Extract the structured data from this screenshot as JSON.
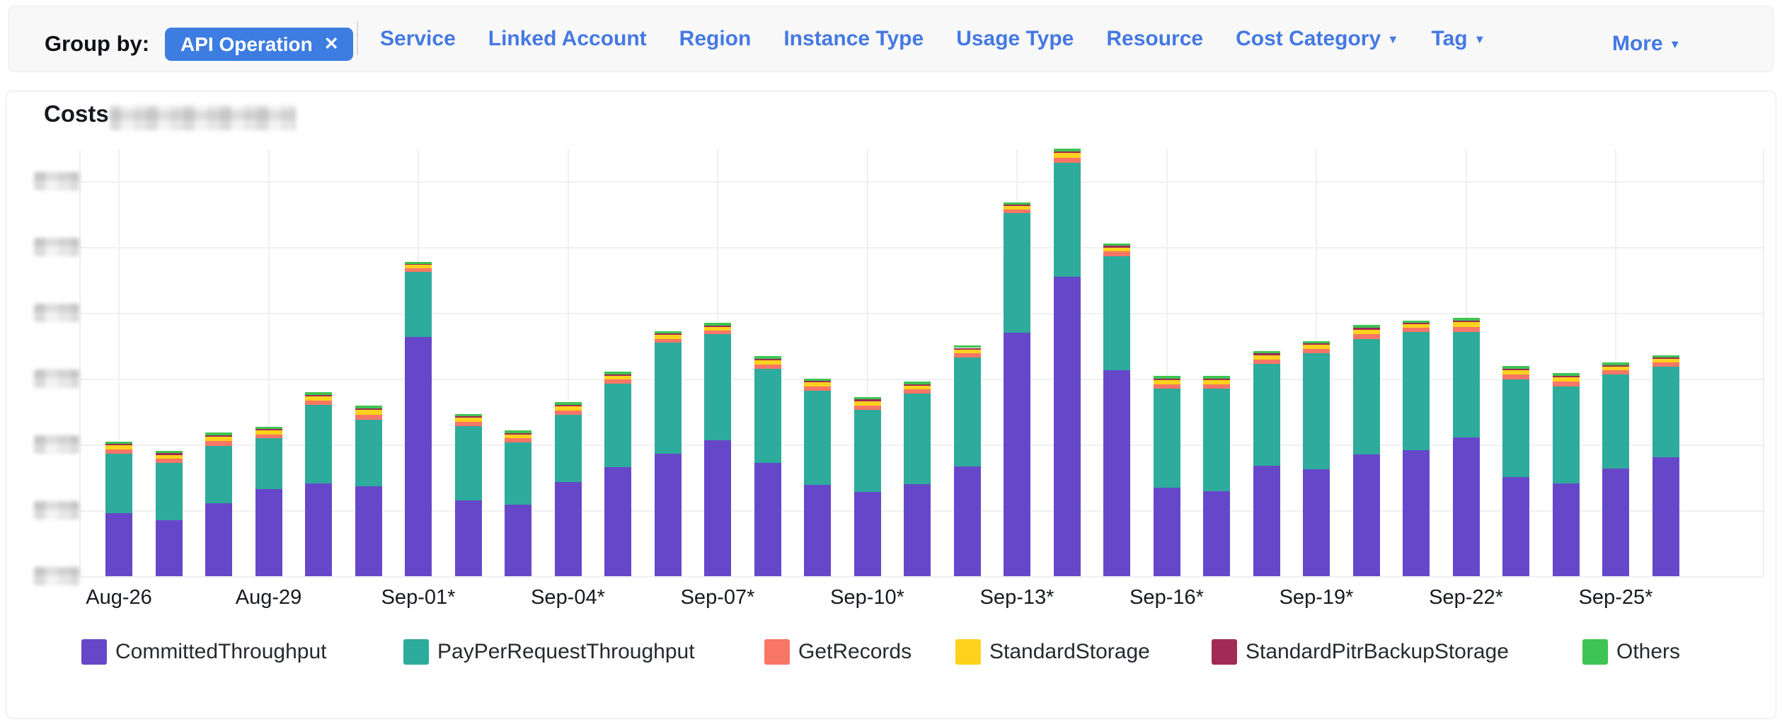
{
  "toolbar": {
    "group_by_label": "Group by:",
    "active_filter": {
      "label": "API Operation",
      "remove_icon": "✕"
    },
    "links": [
      "Service",
      "Linked Account",
      "Region",
      "Instance Type",
      "Usage Type",
      "Resource"
    ],
    "dropdown_links": [
      "Cost Category",
      "Tag"
    ],
    "more_label": "More",
    "caret_icon": "▼"
  },
  "panel": {
    "title": "Costs",
    "title_suffix_redacted": true,
    "y_axis_labels_redacted": true
  },
  "colors": {
    "chip_bg": "#3d7de1",
    "link_text": "#4579e2",
    "gridline": "#f0f0f2",
    "axis_text": "#16191f",
    "committed_throughput": "#6747c9",
    "pay_per_request_throughput": "#2dab9c",
    "get_records": "#f87666",
    "standard_storage": "#fcd21c",
    "standard_pitr_backup_storage": "#a12a56",
    "others": "#3ec452"
  },
  "chart_data": {
    "type": "bar",
    "stacked": true,
    "title": "Costs",
    "xlabel": "",
    "ylabel": "",
    "grid": true,
    "legend_position": "bottom",
    "y_axis_labels_redacted": true,
    "values_unit": "relative-gridline-units (y-axis tick labels are blurred in source)",
    "x_tick_labels": [
      "Aug-26",
      "Aug-29",
      "Sep-01*",
      "Sep-04*",
      "Sep-07*",
      "Sep-10*",
      "Sep-13*",
      "Sep-16*",
      "Sep-19*",
      "Sep-22*",
      "Sep-25*"
    ],
    "categories": [
      "Aug-26",
      "Aug-27",
      "Aug-28",
      "Aug-29",
      "Aug-30",
      "Aug-31",
      "Sep-01",
      "Sep-02",
      "Sep-03",
      "Sep-04",
      "Sep-05",
      "Sep-06",
      "Sep-07",
      "Sep-08",
      "Sep-09",
      "Sep-10",
      "Sep-11",
      "Sep-12",
      "Sep-13",
      "Sep-14",
      "Sep-15",
      "Sep-16",
      "Sep-17",
      "Sep-18",
      "Sep-19",
      "Sep-20",
      "Sep-21",
      "Sep-22",
      "Sep-23",
      "Sep-24",
      "Sep-25",
      "Sep-26"
    ],
    "series": [
      {
        "name": "CommittedThroughput",
        "color": "#6747c9",
        "values": [
          0.96,
          0.85,
          1.11,
          1.32,
          1.41,
          1.36,
          3.63,
          1.15,
          1.09,
          1.43,
          1.65,
          1.86,
          2.06,
          1.72,
          1.39,
          1.28,
          1.4,
          1.67,
          3.7,
          4.54,
          3.13,
          1.34,
          1.29,
          1.68,
          1.62,
          1.85,
          1.91,
          2.11,
          1.5,
          1.41,
          1.63,
          1.8
        ]
      },
      {
        "name": "PayPerRequestThroughput",
        "color": "#2dab9c",
        "values": [
          0.9,
          0.87,
          0.87,
          0.77,
          1.19,
          1.01,
          0.99,
          1.13,
          0.94,
          1.02,
          1.27,
          1.68,
          1.61,
          1.43,
          1.42,
          1.24,
          1.37,
          1.65,
          1.81,
          1.73,
          1.73,
          1.51,
          1.56,
          1.54,
          1.76,
          1.75,
          1.8,
          1.6,
          1.49,
          1.47,
          1.43,
          1.38
        ]
      },
      {
        "name": "GetRecords",
        "color": "#f87666",
        "values": [
          0.063,
          0.063,
          0.07,
          0.063,
          0.066,
          0.077,
          0.053,
          0.063,
          0.063,
          0.066,
          0.063,
          0.063,
          0.06,
          0.066,
          0.066,
          0.07,
          0.063,
          0.063,
          0.056,
          0.077,
          0.066,
          0.066,
          0.066,
          0.07,
          0.066,
          0.073,
          0.06,
          0.073,
          0.07,
          0.07,
          0.063,
          0.06
        ]
      },
      {
        "name": "StandardStorage",
        "color": "#fcd21c",
        "values": [
          0.059,
          0.059,
          0.066,
          0.059,
          0.063,
          0.073,
          0.05,
          0.059,
          0.059,
          0.063,
          0.059,
          0.059,
          0.056,
          0.063,
          0.063,
          0.066,
          0.059,
          0.059,
          0.053,
          0.073,
          0.063,
          0.063,
          0.063,
          0.066,
          0.063,
          0.069,
          0.056,
          0.069,
          0.066,
          0.066,
          0.059,
          0.056
        ]
      },
      {
        "name": "StandardPitrBackupStorage",
        "color": "#a12a56",
        "values": [
          0.022,
          0.022,
          0.024,
          0.022,
          0.023,
          0.026,
          0.018,
          0.022,
          0.022,
          0.023,
          0.022,
          0.022,
          0.02,
          0.023,
          0.023,
          0.024,
          0.022,
          0.022,
          0.019,
          0.026,
          0.023,
          0.023,
          0.023,
          0.024,
          0.023,
          0.025,
          0.02,
          0.025,
          0.024,
          0.024,
          0.022,
          0.02
        ]
      },
      {
        "name": "Others",
        "color": "#3ec452",
        "values": [
          0.036,
          0.036,
          0.04,
          0.036,
          0.038,
          0.044,
          0.03,
          0.036,
          0.036,
          0.038,
          0.036,
          0.036,
          0.034,
          0.038,
          0.038,
          0.04,
          0.036,
          0.036,
          0.032,
          0.044,
          0.038,
          0.038,
          0.038,
          0.04,
          0.038,
          0.042,
          0.034,
          0.042,
          0.04,
          0.04,
          0.036,
          0.034
        ]
      }
    ]
  }
}
